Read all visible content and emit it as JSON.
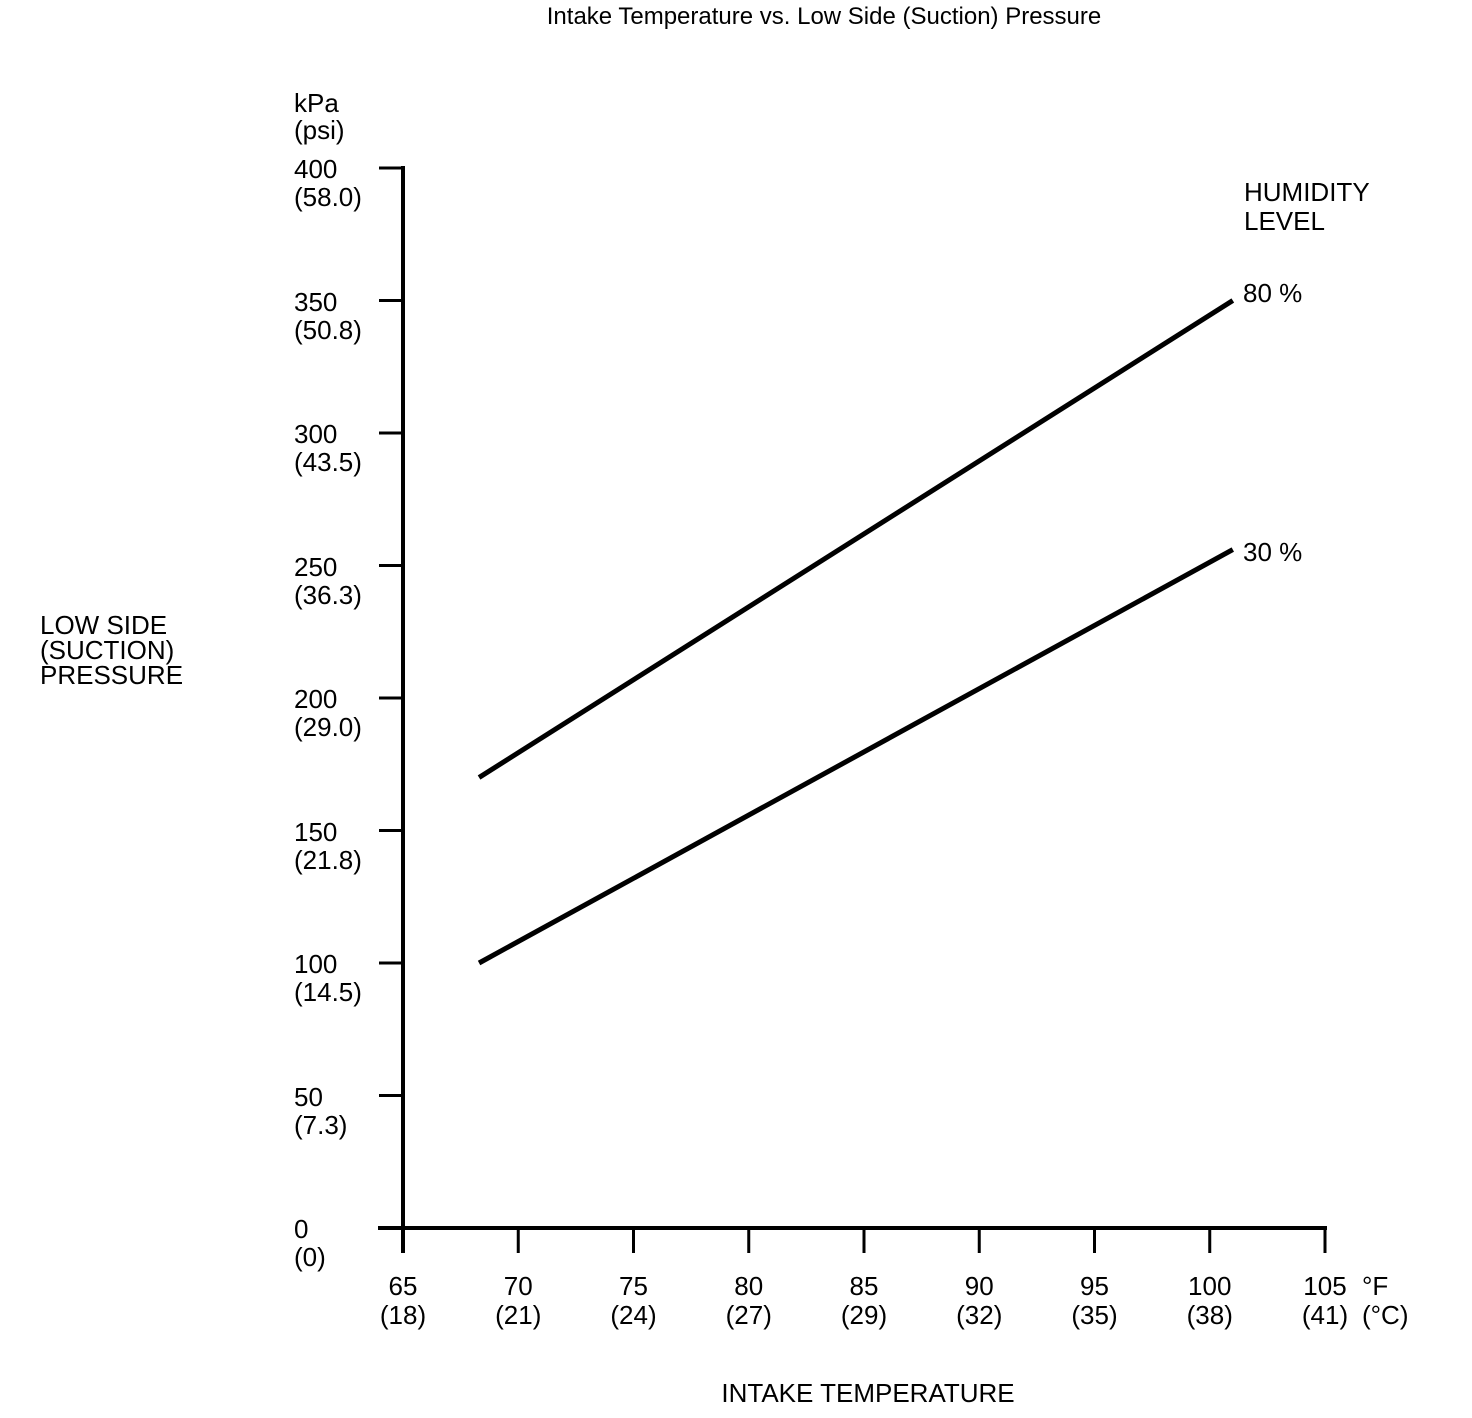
{
  "title": "Intake Temperature vs. Low Side (Suction) Pressure",
  "y_axis": {
    "unit_lines": [
      "kPa",
      "(psi)"
    ],
    "title_lines": [
      "LOW SIDE",
      "(SUCTION)",
      "PRESSURE"
    ],
    "ticks": [
      {
        "value": 400,
        "kpa": "400",
        "psi": "(58.0)"
      },
      {
        "value": 350,
        "kpa": "350",
        "psi": "(50.8)"
      },
      {
        "value": 300,
        "kpa": "300",
        "psi": "(43.5)"
      },
      {
        "value": 250,
        "kpa": "250",
        "psi": "(36.3)"
      },
      {
        "value": 200,
        "kpa": "200",
        "psi": "(29.0)"
      },
      {
        "value": 150,
        "kpa": "150",
        "psi": "(21.8)"
      },
      {
        "value": 100,
        "kpa": "100",
        "psi": "(14.5)"
      },
      {
        "value": 50,
        "kpa": "50",
        "psi": "(7.3)"
      },
      {
        "value": 0,
        "kpa": "0",
        "psi": "(0)"
      }
    ]
  },
  "x_axis": {
    "title": "INTAKE TEMPERATURE",
    "unit_lines": [
      "°F",
      "(°C)"
    ],
    "ticks": [
      {
        "value": 65,
        "f": "65",
        "c": "(18)"
      },
      {
        "value": 70,
        "f": "70",
        "c": "(21)"
      },
      {
        "value": 75,
        "f": "75",
        "c": "(24)"
      },
      {
        "value": 80,
        "f": "80",
        "c": "(27)"
      },
      {
        "value": 85,
        "f": "85",
        "c": "(29)"
      },
      {
        "value": 90,
        "f": "90",
        "c": "(32)"
      },
      {
        "value": 95,
        "f": "95",
        "c": "(35)"
      },
      {
        "value": 100,
        "f": "100",
        "c": "(38)"
      },
      {
        "value": 105,
        "f": "105",
        "c": "(41)"
      }
    ]
  },
  "legend": {
    "title_lines": [
      "HUMIDITY",
      "LEVEL"
    ],
    "series_labels": [
      "80 %",
      "30 %"
    ]
  },
  "chart_data": {
    "type": "line",
    "title": "Intake Temperature vs. Low Side (Suction) Pressure",
    "xlabel": "INTAKE TEMPERATURE (°F / °C)",
    "ylabel": "LOW SIDE (SUCTION) PRESSURE (kPa / psi)",
    "xlim": [
      65,
      105
    ],
    "ylim": [
      0,
      400
    ],
    "x_ticks_f": [
      65,
      70,
      75,
      80,
      85,
      90,
      95,
      100,
      105
    ],
    "x_ticks_c": [
      18,
      21,
      24,
      27,
      29,
      32,
      35,
      38,
      41
    ],
    "y_ticks_kpa": [
      400,
      350,
      300,
      250,
      200,
      150,
      100,
      50,
      0
    ],
    "y_ticks_psi": [
      58.0,
      50.8,
      43.5,
      36.3,
      29.0,
      21.8,
      14.5,
      7.3,
      0
    ],
    "grid": false,
    "legend_position": "upper right",
    "line_color": "#000000",
    "series": [
      {
        "name": "80 %",
        "humidity_percent": 80,
        "x_f": [
          68.3,
          101
        ],
        "y_kpa": [
          170,
          350
        ]
      },
      {
        "name": "30 %",
        "humidity_percent": 30,
        "x_f": [
          68.3,
          101
        ],
        "y_kpa": [
          100,
          256
        ]
      }
    ]
  }
}
